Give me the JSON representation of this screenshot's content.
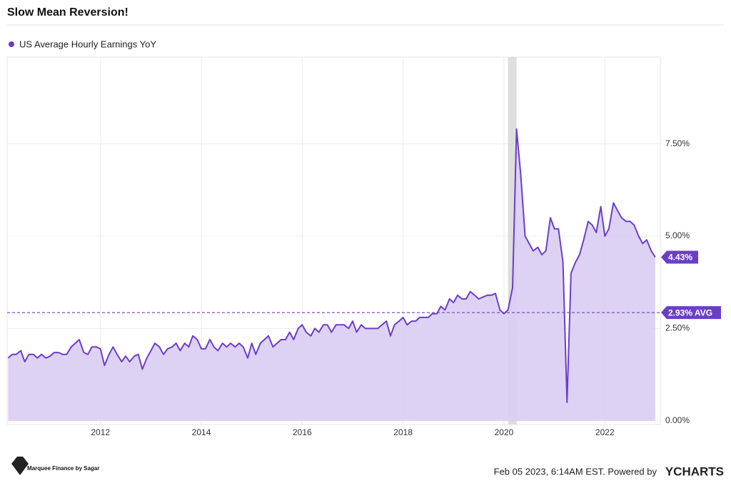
{
  "chart_data": {
    "type": "area",
    "title": "Slow Mean Reversion!",
    "legend": "US Average Hourly Earnings YoY",
    "footer": "Feb 05 2023, 6:14AM EST. Powered by",
    "brand": "YCHARTS",
    "watermark": "Marquee Finance by Sagar",
    "color": "#6a3fc8",
    "fill": "#d9cdf3",
    "grid": true,
    "xlim": [
      2010.15,
      2023.1
    ],
    "ylim": [
      -0.1,
      9.85
    ],
    "xticks": [
      2012,
      2014,
      2016,
      2018,
      2020,
      2022
    ],
    "yticks": [
      {
        "value": 0,
        "label": "0.00%"
      },
      {
        "value": 2.5,
        "label": "2.50%"
      },
      {
        "value": 5,
        "label": "5.00%"
      },
      {
        "value": 7.5,
        "label": "7.50%"
      }
    ],
    "shaded_x": [
      2020.08,
      2020.25
    ],
    "average": {
      "value": 2.93,
      "label": "2.93% AVG"
    },
    "end_label": {
      "value": 4.43,
      "label": "4.43%"
    },
    "x": [
      2010.17,
      2010.25,
      2010.33,
      2010.42,
      2010.5,
      2010.58,
      2010.67,
      2010.75,
      2010.83,
      2010.92,
      2011,
      2011.08,
      2011.17,
      2011.25,
      2011.33,
      2011.42,
      2011.5,
      2011.58,
      2011.67,
      2011.75,
      2011.83,
      2011.92,
      2012,
      2012.08,
      2012.17,
      2012.25,
      2012.33,
      2012.42,
      2012.5,
      2012.58,
      2012.67,
      2012.75,
      2012.83,
      2012.92,
      2013,
      2013.08,
      2013.17,
      2013.25,
      2013.33,
      2013.42,
      2013.5,
      2013.58,
      2013.67,
      2013.75,
      2013.83,
      2013.92,
      2014,
      2014.08,
      2014.17,
      2014.25,
      2014.33,
      2014.42,
      2014.5,
      2014.58,
      2014.67,
      2014.75,
      2014.83,
      2014.92,
      2015,
      2015.08,
      2015.17,
      2015.25,
      2015.33,
      2015.42,
      2015.5,
      2015.58,
      2015.67,
      2015.75,
      2015.83,
      2015.92,
      2016,
      2016.08,
      2016.17,
      2016.25,
      2016.33,
      2016.42,
      2016.5,
      2016.58,
      2016.67,
      2016.75,
      2016.83,
      2016.92,
      2017,
      2017.08,
      2017.17,
      2017.25,
      2017.33,
      2017.42,
      2017.5,
      2017.58,
      2017.67,
      2017.75,
      2017.83,
      2017.92,
      2018,
      2018.08,
      2018.17,
      2018.25,
      2018.33,
      2018.42,
      2018.5,
      2018.58,
      2018.67,
      2018.75,
      2018.83,
      2018.92,
      2019,
      2019.08,
      2019.17,
      2019.25,
      2019.33,
      2019.42,
      2019.5,
      2019.58,
      2019.67,
      2019.75,
      2019.83,
      2019.92,
      2020,
      2020.08,
      2020.17,
      2020.25,
      2020.33,
      2020.42,
      2020.5,
      2020.58,
      2020.67,
      2020.75,
      2020.83,
      2020.92,
      2021,
      2021.08,
      2021.17,
      2021.25,
      2021.33,
      2021.42,
      2021.5,
      2021.58,
      2021.67,
      2021.75,
      2021.83,
      2021.92,
      2022,
      2022.08,
      2022.17,
      2022.25,
      2022.33,
      2022.42,
      2022.5,
      2022.58,
      2022.67,
      2022.75,
      2022.83,
      2022.92,
      2023
    ],
    "values": [
      1.7,
      1.8,
      1.8,
      1.9,
      1.6,
      1.8,
      1.8,
      1.7,
      1.8,
      1.7,
      1.75,
      1.85,
      1.85,
      1.8,
      1.8,
      2.0,
      2.1,
      2.2,
      1.85,
      1.8,
      2.0,
      2.0,
      1.95,
      1.5,
      1.8,
      2.0,
      1.8,
      1.6,
      1.75,
      1.6,
      1.75,
      1.8,
      1.4,
      1.7,
      1.9,
      2.1,
      2.0,
      1.8,
      1.95,
      2.0,
      2.1,
      1.9,
      2.1,
      2.0,
      2.3,
      2.2,
      1.95,
      1.95,
      2.2,
      2.0,
      1.9,
      2.1,
      2.0,
      2.1,
      2.0,
      2.1,
      2.0,
      1.7,
      2.1,
      1.8,
      2.1,
      2.2,
      2.3,
      2.0,
      2.1,
      2.2,
      2.2,
      2.4,
      2.2,
      2.5,
      2.6,
      2.4,
      2.3,
      2.5,
      2.4,
      2.6,
      2.6,
      2.4,
      2.6,
      2.6,
      2.6,
      2.5,
      2.7,
      2.4,
      2.6,
      2.5,
      2.5,
      2.5,
      2.5,
      2.6,
      2.7,
      2.3,
      2.6,
      2.7,
      2.8,
      2.6,
      2.7,
      2.7,
      2.8,
      2.8,
      2.8,
      2.9,
      2.9,
      3.1,
      3.0,
      3.3,
      3.2,
      3.4,
      3.3,
      3.3,
      3.5,
      3.4,
      3.3,
      3.35,
      3.4,
      3.4,
      3.45,
      3.0,
      2.9,
      3.0,
      3.6,
      7.9,
      6.7,
      5.0,
      4.8,
      4.6,
      4.7,
      4.5,
      4.6,
      5.5,
      5.2,
      5.2,
      4.3,
      0.5,
      4.0,
      4.3,
      4.5,
      4.9,
      5.4,
      5.3,
      5.1,
      5.8,
      5.0,
      5.2,
      5.9,
      5.7,
      5.5,
      5.4,
      5.4,
      5.3,
      5.0,
      4.8,
      4.9,
      4.6,
      4.43
    ]
  }
}
